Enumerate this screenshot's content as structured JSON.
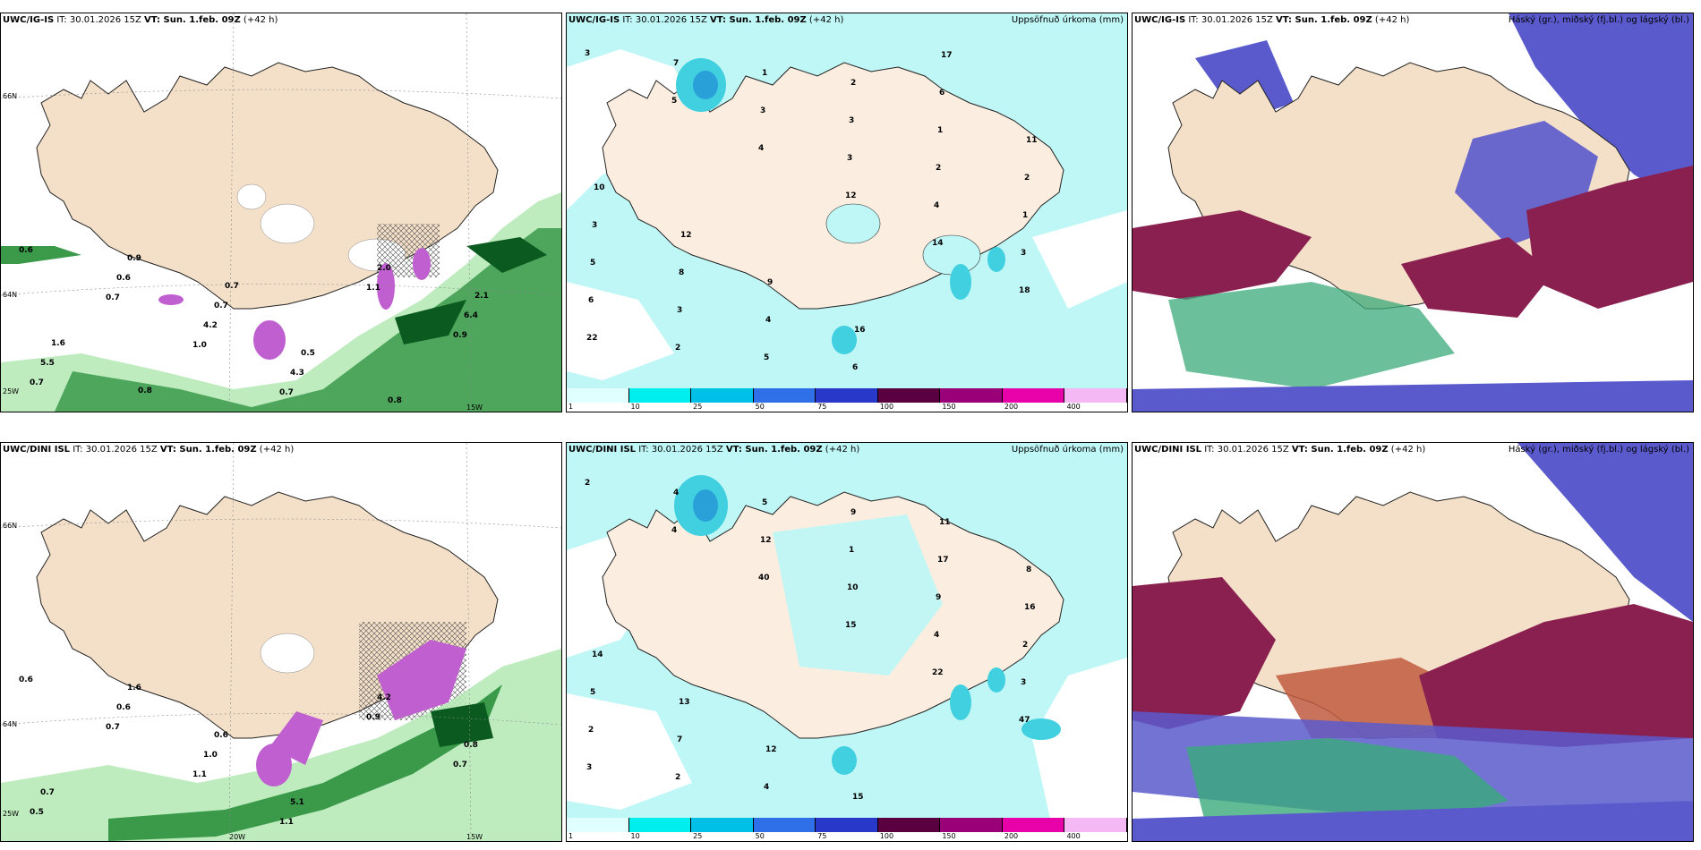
{
  "panels": [
    {
      "id": "p1",
      "model": "UWC/IG-IS",
      "it": " IT: 30.01.2026 15Z ",
      "vt": "VT: Sun. 1.feb. 09Z",
      "lead": " (+42 h)",
      "right": ""
    },
    {
      "id": "p2",
      "model": "UWC/IG-IS",
      "it": " IT: 30.01.2026 15Z ",
      "vt": "VT: Sun. 1.feb. 09Z",
      "lead": " (+42 h)",
      "right": "Uppsöfnuð úrkoma (mm)"
    },
    {
      "id": "p3",
      "model": "UWC/IG-IS",
      "it": " IT: 30.01.2026 15Z ",
      "vt": "VT: Sun. 1.feb. 09Z",
      "lead": " (+42 h)",
      "right": "Háský (gr.), miðský (fj.bl.) og lágský (bl.)"
    },
    {
      "id": "p4",
      "model": "UWC/DINI ISL",
      "it": " IT: 30.01.2026 15Z ",
      "vt": "VT: Sun. 1.feb. 09Z",
      "lead": " (+42 h)",
      "right": ""
    },
    {
      "id": "p5",
      "model": "UWC/DINI ISL",
      "it": " IT: 30.01.2026 15Z ",
      "vt": "VT: Sun. 1.feb. 09Z",
      "lead": " (+42 h)",
      "right": "Uppsöfnuð úrkoma (mm)"
    },
    {
      "id": "p6",
      "model": "UWC/DINI ISL",
      "it": " IT: 30.01.2026 15Z ",
      "vt": "VT: Sun. 1.feb. 09Z",
      "lead": " (+42 h)",
      "right": "Háský (gr.), miðský (fj.bl.) og lágský (bl.)"
    }
  ],
  "colorbar": {
    "labels": [
      "1",
      "10",
      "25",
      "50",
      "75",
      "100",
      "150",
      "200",
      "400"
    ],
    "colors": [
      "#e0ffff",
      "#00eeee",
      "#00c0e8",
      "#2f6fe8",
      "#2838c8",
      "#5a0040",
      "#9a0078",
      "#e800a8",
      "#f4b8f4"
    ]
  },
  "axis": {
    "lat66": "66N",
    "lat64": "64N",
    "lon25": "25W",
    "lon20": "20W",
    "lon15": "15W"
  },
  "labels_wind_top": [
    "0.6",
    "0.7",
    "1.0",
    "0.7",
    "1.1",
    "0.9",
    "0.7",
    "0.6",
    "4.2",
    "4.3",
    "2.0",
    "6.4",
    "5.5",
    "0.9",
    "0.7",
    "0.5",
    "0.8",
    "2.1",
    "1.6",
    "0.8",
    "0.7"
  ],
  "labels_wind_bot": [
    "0.6",
    "0.7",
    "1.1",
    "1.1",
    "0.9",
    "0.7",
    "0.5",
    "0.6",
    "1.0",
    "5.1",
    "4.2",
    "0.8",
    "0.7",
    "1.6",
    "0.6"
  ],
  "labels_precip_top": [
    "3",
    "5",
    "4",
    "12",
    "14",
    "18",
    "22",
    "7",
    "3",
    "3",
    "4",
    "3",
    "6",
    "2",
    "1",
    "3",
    "2",
    "1",
    "5",
    "3",
    "5",
    "2",
    "1",
    "2",
    "3",
    "8",
    "4",
    "6",
    "6",
    "11",
    "10",
    "12",
    "9",
    "16",
    "17"
  ],
  "labels_precip_bot": [
    "2",
    "4",
    "40",
    "15",
    "22",
    "47",
    "3",
    "4",
    "12",
    "10",
    "4",
    "3",
    "2",
    "2",
    "5",
    "1",
    "9",
    "2",
    "5",
    "7",
    "4",
    "9",
    "17",
    "16",
    "14",
    "13",
    "12",
    "15",
    "11",
    "8"
  ]
}
